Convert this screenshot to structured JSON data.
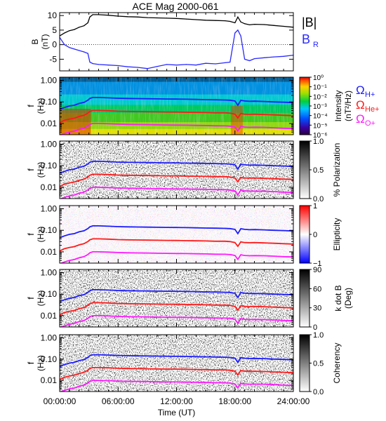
{
  "title": "ACE Mag 2000-061",
  "xaxis": {
    "label": "Time (UT)",
    "ticks": [
      "00:00:00",
      "06:00:00",
      "12:00:00",
      "18:00:00",
      "24:00:00"
    ],
    "range_hours": [
      0,
      24
    ]
  },
  "colors": {
    "field_magnitude": "#000000",
    "field_radial": "#2a2aff",
    "h_plus": "#1c1cff",
    "he_plus": "#ff1a1a",
    "o_plus": "#ff1aff"
  },
  "chart_data": [
    {
      "type": "line",
      "panel": "field",
      "ylabel": [
        "B",
        "(nT)"
      ],
      "ylim": [
        -9,
        11
      ],
      "yticks": [
        "10",
        "5",
        "0",
        "-5"
      ],
      "ytick_values": [
        10,
        5,
        0,
        -5
      ],
      "legend": [
        "|B|",
        "B"
      ],
      "legend_subscript": [
        "",
        "R"
      ],
      "series": [
        {
          "name": "|B|",
          "x": [
            0,
            0.5,
            1,
            1.5,
            2,
            2.5,
            2.9,
            3.1,
            3.4,
            4,
            5,
            6,
            7,
            8,
            9,
            10,
            11,
            12,
            13,
            14,
            15,
            16,
            17,
            17.5,
            18,
            18.3,
            18.6,
            19,
            19.5,
            20,
            21,
            22,
            23,
            24
          ],
          "values": [
            3,
            4,
            4.8,
            5.2,
            6,
            6.5,
            7.5,
            9.5,
            10.3,
            10.3,
            10.1,
            9.8,
            9.6,
            9.5,
            9.3,
            9.2,
            9.1,
            9.0,
            8.8,
            8.6,
            8.4,
            8.3,
            8.2,
            8.0,
            7.5,
            9.5,
            7.8,
            7.2,
            6.8,
            7.0,
            6.9,
            6.6,
            6.3,
            6.0
          ]
        },
        {
          "name": "B_R",
          "x": [
            0,
            0.5,
            1,
            1.5,
            2,
            2.5,
            2.9,
            3.1,
            3.4,
            4,
            5,
            6,
            7,
            8,
            9,
            10,
            11,
            12,
            13,
            14,
            15,
            16,
            17,
            17.5,
            18,
            18.3,
            18.6,
            19,
            19.5,
            20,
            21,
            22,
            23,
            24
          ],
          "values": [
            2.5,
            0,
            -1,
            -1.5,
            -2,
            -2.5,
            -3,
            -6,
            -6.5,
            -6.8,
            -7,
            -7.2,
            -7.6,
            -7.8,
            -8.2,
            -7.5,
            -6.8,
            -7.0,
            -6.8,
            -7.0,
            -6.4,
            -6.6,
            -6.2,
            -6.0,
            4,
            5,
            3,
            -5,
            -5.5,
            -4.8,
            -4.5,
            -4.2,
            -4.0,
            -3.6
          ]
        }
      ]
    },
    {
      "type": "heatmap",
      "panel": "intensity",
      "ylabel": [
        "f",
        "(Hz)"
      ],
      "colorbar_label": [
        "Intensity",
        "(nT²/Hz)"
      ],
      "colorbar_ticks": [
        "10⁰",
        "10⁻¹",
        "10⁻²",
        "10⁻³",
        "10⁻⁴",
        "10⁻⁵",
        "10⁻⁶"
      ],
      "colorbar_range_log10": [
        -7,
        0
      ]
    },
    {
      "type": "heatmap",
      "panel": "polarization",
      "ylabel": [
        "f",
        "(Hz)"
      ],
      "colorbar_label": [
        "% Polarization"
      ],
      "colorbar_ticks": [
        "1.0",
        "0.5",
        "0.0"
      ],
      "colorbar_range": [
        0,
        1
      ]
    },
    {
      "type": "heatmap",
      "panel": "ellipticity",
      "ylabel": [
        "f",
        "(Hz)"
      ],
      "colorbar_label": [
        "Ellipticity"
      ],
      "colorbar_ticks": [
        "1",
        "0",
        "−1"
      ],
      "colorbar_range": [
        -1,
        1
      ]
    },
    {
      "type": "heatmap",
      "panel": "kdotb",
      "ylabel": [
        "f",
        "(Hz)"
      ],
      "colorbar_label": [
        "k dot B",
        "(Deg)"
      ],
      "colorbar_ticks": [
        "90",
        "60",
        "30",
        "0"
      ],
      "colorbar_range": [
        0,
        90
      ]
    },
    {
      "type": "heatmap",
      "panel": "coherency",
      "ylabel": [
        "f",
        "(Hz)"
      ],
      "colorbar_label": [
        "Coherency"
      ],
      "colorbar_ticks": [
        "1.0",
        "0.5",
        "0.0"
      ],
      "colorbar_range": [
        0,
        1
      ]
    }
  ],
  "spectrogram_axis": {
    "yticks": [
      "1.00",
      "0.10",
      "0.01"
    ],
    "ytick_values": [
      1,
      0.1,
      0.01
    ],
    "ylim_hz": [
      0.003,
      1.4
    ]
  },
  "gyrofrequency_lines": {
    "legend": [
      {
        "symbol": "Ω",
        "subscript": "H+"
      },
      {
        "symbol": "Ω",
        "subscript": "He+"
      },
      {
        "symbol": "Ω",
        "subscript": "O+"
      }
    ],
    "x": [
      0,
      0.5,
      1,
      1.5,
      2,
      2.5,
      2.9,
      3.1,
      3.4,
      4,
      5,
      6,
      7,
      8,
      9,
      10,
      11,
      12,
      13,
      14,
      15,
      16,
      17,
      17.5,
      18,
      18.3,
      18.6,
      19,
      19.5,
      20,
      21,
      22,
      23,
      24
    ],
    "h_plus_hz": [
      0.045,
      0.055,
      0.065,
      0.07,
      0.085,
      0.095,
      0.12,
      0.145,
      0.16,
      0.16,
      0.155,
      0.148,
      0.145,
      0.142,
      0.14,
      0.138,
      0.136,
      0.135,
      0.133,
      0.13,
      0.127,
      0.125,
      0.123,
      0.12,
      0.11,
      0.07,
      0.118,
      0.11,
      0.106,
      0.108,
      0.105,
      0.1,
      0.097,
      0.093
    ],
    "he_plus_hz": [
      0.011,
      0.014,
      0.016,
      0.0175,
      0.021,
      0.024,
      0.03,
      0.036,
      0.04,
      0.04,
      0.039,
      0.037,
      0.036,
      0.0355,
      0.035,
      0.0345,
      0.034,
      0.0338,
      0.033,
      0.0325,
      0.032,
      0.031,
      0.031,
      0.03,
      0.027,
      0.018,
      0.029,
      0.027,
      0.0265,
      0.027,
      0.026,
      0.025,
      0.024,
      0.023
    ],
    "o_plus_hz": [
      0.0028,
      0.0034,
      0.004,
      0.0044,
      0.0053,
      0.006,
      0.0075,
      0.009,
      0.01,
      0.01,
      0.0097,
      0.0093,
      0.009,
      0.0089,
      0.0088,
      0.0086,
      0.0085,
      0.0084,
      0.0083,
      0.0081,
      0.008,
      0.0078,
      0.0077,
      0.0075,
      0.0068,
      0.0045,
      0.0073,
      0.0068,
      0.0066,
      0.0067,
      0.0066,
      0.0063,
      0.006,
      0.0058
    ]
  }
}
